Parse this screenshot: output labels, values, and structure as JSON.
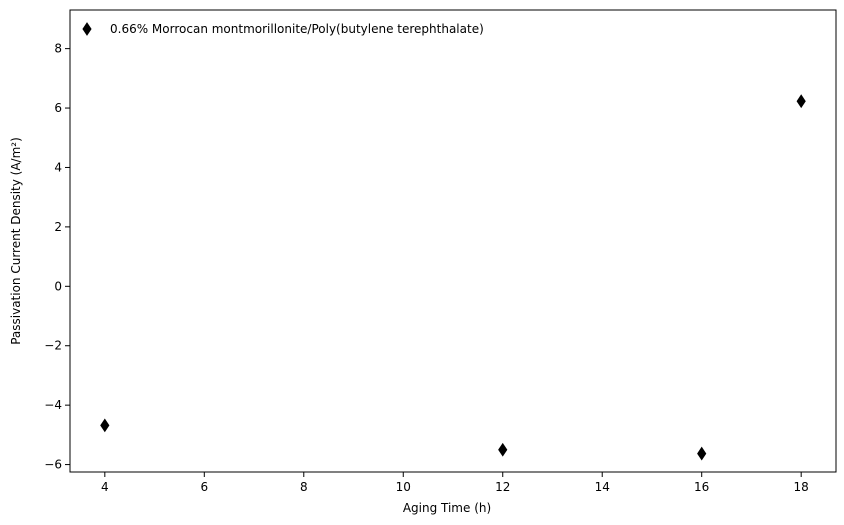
{
  "chart_data": {
    "type": "scatter",
    "title": "",
    "xlabel": "Aging Time (h)",
    "ylabel": "Passivation Current Density (A/m²)",
    "xlim": [
      3.3,
      18.7
    ],
    "ylim": [
      -6.25,
      9.3
    ],
    "xticks": [
      4,
      6,
      8,
      10,
      12,
      14,
      16,
      18
    ],
    "yticks": [
      -6,
      -4,
      -2,
      0,
      2,
      4,
      6,
      8
    ],
    "grid": false,
    "legend_position": "top-left",
    "marker": "thin-diamond",
    "series": [
      {
        "name": "0.66% Morrocan montmorillonite/Poly(butylene terephthalate)",
        "color": "#000000",
        "x": [
          4,
          12,
          16,
          18
        ],
        "y": [
          -4.68,
          -5.5,
          -5.63,
          6.23
        ]
      }
    ]
  }
}
